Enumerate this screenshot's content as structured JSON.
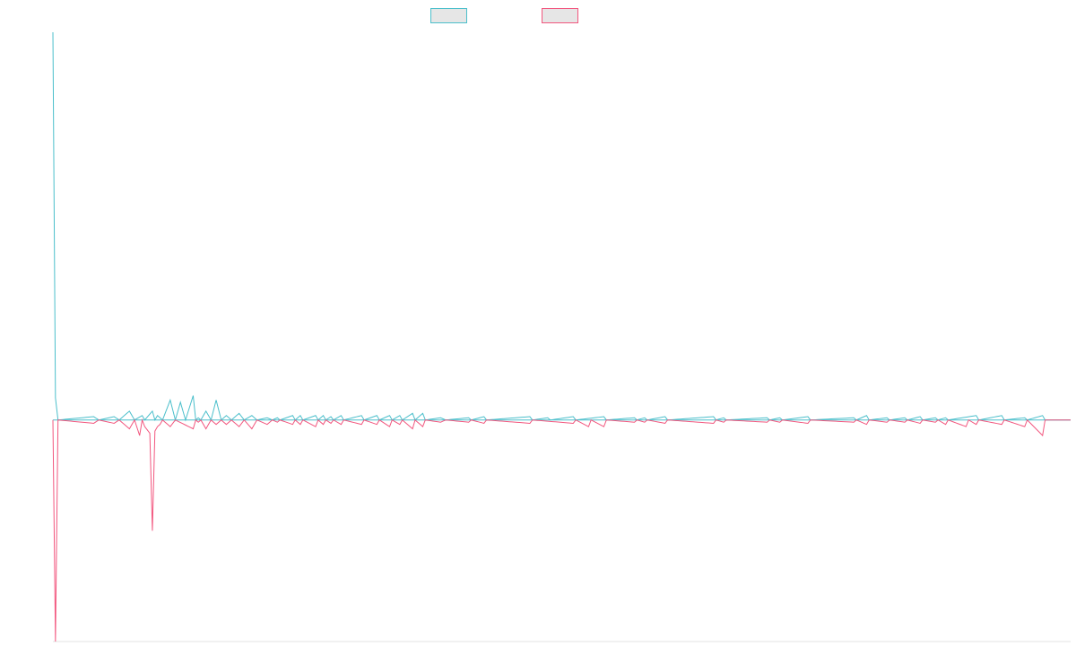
{
  "chart_data": {
    "type": "line",
    "title": "",
    "xlabel": "",
    "ylabel": "",
    "grid": false,
    "legend_position": "top-center",
    "colors": {
      "series_a": "#4bbfcb",
      "series_b": "#f2567e",
      "legend_fill": "#e6e6e6",
      "axis": "#e3e3e3"
    },
    "x_count": 400,
    "ylim": [
      -100,
      175
    ],
    "series": [
      {
        "key": "a",
        "name": "",
        "color": "#4bbfcb",
        "baseline": 0,
        "points": [
          [
            0,
            175
          ],
          [
            1,
            10
          ],
          [
            2,
            0
          ],
          [
            16,
            1.5
          ],
          [
            18,
            0
          ],
          [
            24,
            1.5
          ],
          [
            26,
            0
          ],
          [
            30,
            4
          ],
          [
            32,
            0
          ],
          [
            35,
            2
          ],
          [
            36,
            0
          ],
          [
            39,
            4
          ],
          [
            40,
            0
          ],
          [
            41,
            2
          ],
          [
            42,
            1
          ],
          [
            43,
            0
          ],
          [
            46,
            9
          ],
          [
            48,
            0
          ],
          [
            50,
            8
          ],
          [
            52,
            0
          ],
          [
            55,
            11
          ],
          [
            56,
            0
          ],
          [
            57,
            1
          ],
          [
            58,
            0
          ],
          [
            60,
            4
          ],
          [
            62,
            0
          ],
          [
            64,
            9
          ],
          [
            66,
            0
          ],
          [
            68,
            2
          ],
          [
            70,
            0
          ],
          [
            73,
            3
          ],
          [
            75,
            0
          ],
          [
            78,
            2
          ],
          [
            80,
            0
          ],
          [
            84,
            1
          ],
          [
            86,
            0
          ],
          [
            88,
            1
          ],
          [
            89,
            0
          ],
          [
            94,
            2
          ],
          [
            95,
            0
          ],
          [
            97,
            2
          ],
          [
            98,
            0
          ],
          [
            103,
            2
          ],
          [
            104,
            0
          ],
          [
            106,
            2
          ],
          [
            107,
            0
          ],
          [
            109,
            1.5
          ],
          [
            110,
            0
          ],
          [
            113,
            2
          ],
          [
            114,
            0
          ],
          [
            121,
            2
          ],
          [
            122,
            0
          ],
          [
            127,
            2
          ],
          [
            128,
            0
          ],
          [
            132,
            2
          ],
          [
            133,
            0
          ],
          [
            136,
            2
          ],
          [
            137,
            0
          ],
          [
            141,
            3
          ],
          [
            142,
            0
          ],
          [
            145,
            3
          ],
          [
            146,
            0
          ],
          [
            152,
            1
          ],
          [
            154,
            0
          ],
          [
            163,
            1
          ],
          [
            164,
            0
          ],
          [
            169,
            1.5
          ],
          [
            170,
            0
          ],
          [
            187,
            1.5
          ],
          [
            188,
            0
          ],
          [
            194,
            1
          ],
          [
            195,
            0
          ],
          [
            204,
            1.5
          ],
          [
            205,
            0
          ],
          [
            216,
            1.5
          ],
          [
            217,
            0
          ],
          [
            228,
            1
          ],
          [
            229,
            0
          ],
          [
            232,
            1
          ],
          [
            233,
            0
          ],
          [
            240,
            1.5
          ],
          [
            241,
            0
          ],
          [
            259,
            1.5
          ],
          [
            260,
            0
          ],
          [
            263,
            1
          ],
          [
            264,
            0
          ],
          [
            280,
            1
          ],
          [
            281,
            0
          ],
          [
            285,
            1
          ],
          [
            286,
            0
          ],
          [
            296,
            1.5
          ],
          [
            297,
            0
          ],
          [
            314,
            1
          ],
          [
            315,
            0
          ],
          [
            319,
            2
          ],
          [
            320,
            0
          ],
          [
            327,
            1
          ],
          [
            328,
            0
          ],
          [
            334,
            1
          ],
          [
            335,
            0
          ],
          [
            340,
            1.5
          ],
          [
            341,
            0
          ],
          [
            346,
            1
          ],
          [
            347,
            0
          ],
          [
            350,
            1
          ],
          [
            351,
            0
          ],
          [
            362,
            2
          ],
          [
            363,
            0
          ],
          [
            372,
            2
          ],
          [
            373,
            0
          ],
          [
            381,
            1
          ],
          [
            382,
            0
          ],
          [
            388,
            2
          ],
          [
            389,
            0
          ],
          [
            399,
            0
          ]
        ]
      },
      {
        "key": "b",
        "name": "",
        "color": "#f2567e",
        "baseline": 0,
        "points": [
          [
            0,
            0
          ],
          [
            1,
            -100
          ],
          [
            2,
            0
          ],
          [
            16,
            -1.5
          ],
          [
            18,
            0
          ],
          [
            24,
            -1.5
          ],
          [
            26,
            0
          ],
          [
            30,
            -4
          ],
          [
            32,
            0
          ],
          [
            34,
            -7
          ],
          [
            35,
            0
          ],
          [
            36,
            -3
          ],
          [
            38,
            -6
          ],
          [
            39,
            -50
          ],
          [
            40,
            -5
          ],
          [
            41,
            -3
          ],
          [
            42,
            -2
          ],
          [
            43,
            0
          ],
          [
            46,
            -3
          ],
          [
            48,
            0
          ],
          [
            55,
            -4
          ],
          [
            56,
            0
          ],
          [
            57,
            -1
          ],
          [
            58,
            0
          ],
          [
            60,
            -4
          ],
          [
            62,
            0
          ],
          [
            64,
            -2
          ],
          [
            66,
            0
          ],
          [
            68,
            -2
          ],
          [
            70,
            0
          ],
          [
            73,
            -3
          ],
          [
            75,
            0
          ],
          [
            78,
            -4
          ],
          [
            80,
            0
          ],
          [
            84,
            -2
          ],
          [
            86,
            0
          ],
          [
            88,
            -1
          ],
          [
            89,
            0
          ],
          [
            94,
            -2
          ],
          [
            95,
            0
          ],
          [
            97,
            -2
          ],
          [
            98,
            0
          ],
          [
            103,
            -3
          ],
          [
            104,
            0
          ],
          [
            106,
            -2
          ],
          [
            107,
            0
          ],
          [
            109,
            -1.5
          ],
          [
            110,
            0
          ],
          [
            113,
            -2
          ],
          [
            114,
            0
          ],
          [
            121,
            -2
          ],
          [
            122,
            0
          ],
          [
            127,
            -2
          ],
          [
            128,
            0
          ],
          [
            132,
            -3
          ],
          [
            133,
            0
          ],
          [
            136,
            -2
          ],
          [
            137,
            0
          ],
          [
            141,
            -4
          ],
          [
            142,
            0
          ],
          [
            145,
            -3
          ],
          [
            146,
            0
          ],
          [
            152,
            -1
          ],
          [
            154,
            0
          ],
          [
            163,
            -1
          ],
          [
            164,
            0
          ],
          [
            169,
            -1.5
          ],
          [
            170,
            0
          ],
          [
            187,
            -1.5
          ],
          [
            188,
            0
          ],
          [
            204,
            -1.5
          ],
          [
            205,
            0
          ],
          [
            210,
            -3
          ],
          [
            211,
            0
          ],
          [
            216,
            -3
          ],
          [
            217,
            0
          ],
          [
            228,
            -1
          ],
          [
            229,
            0
          ],
          [
            232,
            -1
          ],
          [
            233,
            0
          ],
          [
            240,
            -1.5
          ],
          [
            241,
            0
          ],
          [
            259,
            -1.5
          ],
          [
            260,
            0
          ],
          [
            263,
            -1
          ],
          [
            264,
            0
          ],
          [
            280,
            -1
          ],
          [
            281,
            0
          ],
          [
            285,
            -1
          ],
          [
            286,
            0
          ],
          [
            296,
            -1.5
          ],
          [
            297,
            0
          ],
          [
            314,
            -1
          ],
          [
            315,
            0
          ],
          [
            319,
            -2
          ],
          [
            320,
            0
          ],
          [
            327,
            -1
          ],
          [
            328,
            0
          ],
          [
            334,
            -1
          ],
          [
            335,
            0
          ],
          [
            340,
            -1.5
          ],
          [
            341,
            0
          ],
          [
            346,
            -1
          ],
          [
            347,
            0
          ],
          [
            350,
            -2
          ],
          [
            351,
            0
          ],
          [
            358,
            -3
          ],
          [
            359,
            0
          ],
          [
            362,
            -2
          ],
          [
            363,
            0
          ],
          [
            372,
            -2
          ],
          [
            373,
            0
          ],
          [
            381,
            -3
          ],
          [
            382,
            0
          ],
          [
            388,
            -7
          ],
          [
            389,
            0
          ],
          [
            399,
            0
          ]
        ]
      }
    ]
  }
}
